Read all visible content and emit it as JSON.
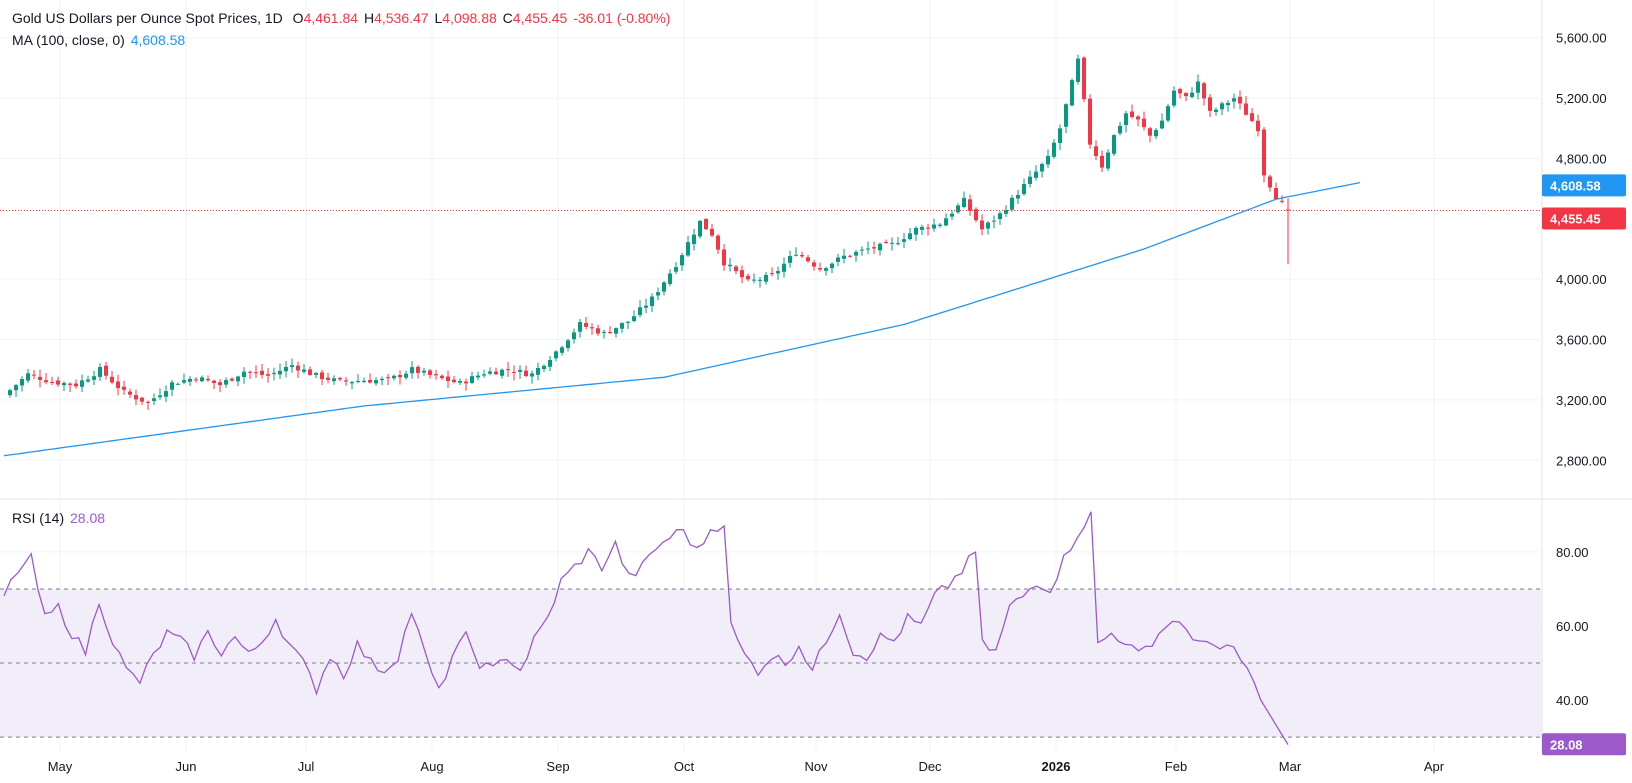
{
  "legend": {
    "title": "Gold US Dollars per Ounce Spot Prices, 1D",
    "open_label": "O",
    "open": "4,461.84",
    "high_label": "H",
    "high": "4,536.47",
    "low_label": "L",
    "low": "4,098.88",
    "close_label": "C",
    "close": "4,455.45",
    "change": "-36.01 (-0.80%)",
    "ma_label": "MA (100, close, 0)",
    "ma_value": "4,608.58",
    "rsi_label": "RSI (14)",
    "rsi_value": "28.08"
  },
  "colors": {
    "up": "#089981",
    "down": "#f23645",
    "ma": "#2196f3",
    "rsi": "#9c59c9",
    "rsi_band": "#ede7f6",
    "grid": "#f0f3fa",
    "text": "#131722"
  },
  "chart_data": [
    {
      "type": "candlestick",
      "title": "Gold US Dollars per Ounce Spot Prices, 1D",
      "x_labels": [
        "May",
        "Jun",
        "Jul",
        "Aug",
        "Sep",
        "Oct",
        "Nov",
        "Dec",
        "2026",
        "Feb",
        "Mar",
        "Apr"
      ],
      "y_ticks": [
        2800,
        3200,
        3600,
        4000,
        4800,
        5200,
        5600
      ],
      "y_tick_labels": [
        "2,800.00",
        "3,200.00",
        "3,600.00",
        "4,000.00",
        "4,800.00",
        "5,200.00",
        "5,600.00"
      ],
      "ylim": [
        2550,
        5850
      ],
      "last_price": 4455.45,
      "last_price_label": "4,455.45",
      "ma_last": 4608.58,
      "ma_last_label": "4,608.58",
      "ma_anchors": [
        [
          0,
          2830
        ],
        [
          60,
          3160
        ],
        [
          110,
          3350
        ],
        [
          150,
          3700
        ],
        [
          190,
          4200
        ],
        [
          212,
          4530
        ],
        [
          226,
          4640
        ]
      ],
      "close_anchors": [
        [
          0,
          3230
        ],
        [
          4,
          3370
        ],
        [
          8,
          3320
        ],
        [
          12,
          3300
        ],
        [
          16,
          3400
        ],
        [
          20,
          3250
        ],
        [
          24,
          3180
        ],
        [
          28,
          3310
        ],
        [
          32,
          3350
        ],
        [
          36,
          3300
        ],
        [
          40,
          3390
        ],
        [
          44,
          3360
        ],
        [
          48,
          3430
        ],
        [
          52,
          3360
        ],
        [
          56,
          3320
        ],
        [
          60,
          3330
        ],
        [
          64,
          3330
        ],
        [
          68,
          3400
        ],
        [
          72,
          3350
        ],
        [
          76,
          3310
        ],
        [
          80,
          3380
        ],
        [
          84,
          3400
        ],
        [
          88,
          3370
        ],
        [
          92,
          3520
        ],
        [
          96,
          3700
        ],
        [
          100,
          3640
        ],
        [
          104,
          3720
        ],
        [
          108,
          3870
        ],
        [
          112,
          4100
        ],
        [
          116,
          4380
        ],
        [
          118,
          4300
        ],
        [
          120,
          4110
        ],
        [
          124,
          3980
        ],
        [
          128,
          4020
        ],
        [
          132,
          4180
        ],
        [
          136,
          4070
        ],
        [
          140,
          4150
        ],
        [
          144,
          4200
        ],
        [
          148,
          4230
        ],
        [
          152,
          4330
        ],
        [
          156,
          4370
        ],
        [
          160,
          4520
        ],
        [
          163,
          4330
        ],
        [
          166,
          4430
        ],
        [
          170,
          4620
        ],
        [
          174,
          4800
        ],
        [
          176,
          5000
        ],
        [
          178,
          5300
        ],
        [
          179,
          5450
        ],
        [
          181,
          4900
        ],
        [
          183,
          4750
        ],
        [
          185,
          4950
        ],
        [
          187,
          5100
        ],
        [
          189,
          5050
        ],
        [
          191,
          4950
        ],
        [
          193,
          5050
        ],
        [
          195,
          5250
        ],
        [
          197,
          5200
        ],
        [
          199,
          5300
        ],
        [
          201,
          5100
        ],
        [
          203,
          5150
        ],
        [
          205,
          5200
        ],
        [
          207,
          5100
        ],
        [
          209,
          5000
        ],
        [
          210,
          4700
        ],
        [
          212,
          4550
        ],
        [
          213,
          4500
        ],
        [
          214,
          4455
        ]
      ],
      "rsi_label": "RSI (14)",
      "rsi_ticks": [
        40,
        60,
        80
      ],
      "rsi_tick_labels": [
        "40.00",
        "60.00",
        "80.00"
      ],
      "rsi_bands": [
        30,
        50,
        70
      ],
      "rsi_ylim": [
        26,
        94
      ],
      "rsi_last": 28.08,
      "rsi_last_label": "28.08",
      "rsi_anchors": [
        [
          0,
          68
        ],
        [
          2,
          75
        ],
        [
          4,
          78
        ],
        [
          6,
          62
        ],
        [
          8,
          65
        ],
        [
          10,
          58
        ],
        [
          12,
          53
        ],
        [
          14,
          67
        ],
        [
          16,
          56
        ],
        [
          18,
          48
        ],
        [
          20,
          45
        ],
        [
          22,
          52
        ],
        [
          24,
          58
        ],
        [
          26,
          56
        ],
        [
          28,
          52
        ],
        [
          30,
          58
        ],
        [
          32,
          53
        ],
        [
          34,
          57
        ],
        [
          36,
          52
        ],
        [
          38,
          56
        ],
        [
          40,
          62
        ],
        [
          42,
          55
        ],
        [
          44,
          50
        ],
        [
          46,
          43
        ],
        [
          48,
          52
        ],
        [
          50,
          47
        ],
        [
          52,
          55
        ],
        [
          54,
          50
        ],
        [
          56,
          48
        ],
        [
          58,
          52
        ],
        [
          60,
          64
        ],
        [
          62,
          52
        ],
        [
          64,
          42
        ],
        [
          66,
          52
        ],
        [
          68,
          57
        ],
        [
          70,
          50
        ],
        [
          72,
          48
        ],
        [
          74,
          52
        ],
        [
          76,
          48
        ],
        [
          78,
          56
        ],
        [
          80,
          62
        ],
        [
          82,
          72
        ],
        [
          84,
          76
        ],
        [
          86,
          80
        ],
        [
          88,
          76
        ],
        [
          90,
          82
        ],
        [
          92,
          73
        ],
        [
          94,
          76
        ],
        [
          96,
          81
        ],
        [
          98,
          84
        ],
        [
          100,
          86
        ],
        [
          102,
          80
        ],
        [
          104,
          86
        ],
        [
          106,
          88
        ],
        [
          107,
          60
        ],
        [
          109,
          52
        ],
        [
          111,
          48
        ],
        [
          113,
          52
        ],
        [
          115,
          50
        ],
        [
          117,
          55
        ],
        [
          119,
          48
        ],
        [
          121,
          56
        ],
        [
          123,
          64
        ],
        [
          125,
          53
        ],
        [
          127,
          52
        ],
        [
          129,
          57
        ],
        [
          131,
          56
        ],
        [
          133,
          62
        ],
        [
          135,
          60
        ],
        [
          137,
          68
        ],
        [
          139,
          71
        ],
        [
          141,
          75
        ],
        [
          143,
          80
        ],
        [
          144,
          55
        ],
        [
          146,
          53
        ],
        [
          148,
          65
        ],
        [
          150,
          68
        ],
        [
          152,
          72
        ],
        [
          154,
          70
        ],
        [
          156,
          78
        ],
        [
          158,
          85
        ],
        [
          160,
          90
        ],
        [
          161,
          55
        ],
        [
          163,
          58
        ],
        [
          165,
          56
        ],
        [
          167,
          52
        ],
        [
          169,
          56
        ],
        [
          171,
          60
        ],
        [
          173,
          62
        ],
        [
          175,
          55
        ],
        [
          177,
          57
        ],
        [
          179,
          53
        ],
        [
          181,
          54
        ],
        [
          183,
          48
        ],
        [
          185,
          40
        ],
        [
          187,
          34
        ],
        [
          189,
          28
        ]
      ]
    }
  ]
}
